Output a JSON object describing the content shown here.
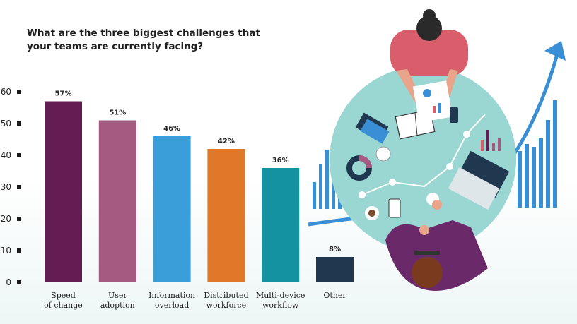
{
  "chart_data": {
    "type": "bar",
    "title": "What are the three biggest challenges that your teams are currently facing?",
    "categories": [
      [
        "Speed",
        "of change"
      ],
      [
        "User",
        "adoption"
      ],
      [
        "Information",
        "overload"
      ],
      [
        "Distributed",
        "workforce"
      ],
      [
        "Multi-device",
        "workflow"
      ],
      [
        "Other"
      ]
    ],
    "values": [
      57,
      51,
      46,
      42,
      36,
      8
    ],
    "value_labels": [
      "57%",
      "51%",
      "46%",
      "42%",
      "36%",
      "8%"
    ],
    "colors": [
      "#641d52",
      "#a55a82",
      "#3a9fd8",
      "#e0782a",
      "#1592a1",
      "#1f3850"
    ],
    "yticks": [
      0,
      10,
      20,
      30,
      40,
      50,
      60
    ],
    "ylim": [
      0,
      60
    ],
    "xlabel": "",
    "ylabel": "",
    "grid": false,
    "legend": "none"
  },
  "illustration": {
    "description_icons": [
      "person-icon",
      "laptop-icon",
      "notebook-icon",
      "coffee-cup-icon",
      "phone-icon",
      "pie-chart-icon",
      "trend-arrow-icon",
      "bar-chart-icon"
    ],
    "accent_blue": "#3a8fd4",
    "table_teal": "#9ad6d2"
  }
}
